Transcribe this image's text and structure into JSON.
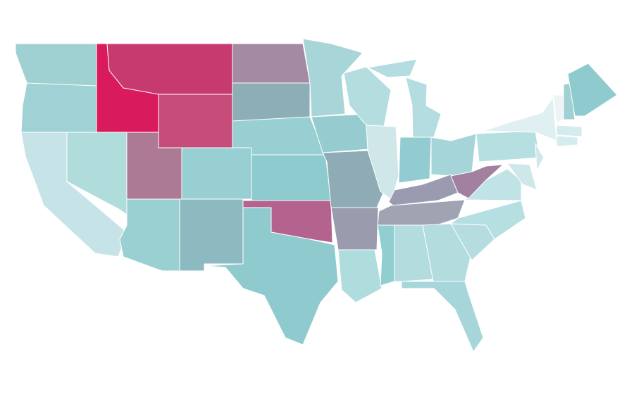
{
  "map": {
    "fills": [
      "#9fd0d2",
      "#a0d1d4",
      "#c6e4e7",
      "#b0dcdc",
      "#d91a5d",
      "#c73a70",
      "#c64d7a",
      "#ad7a96",
      "#98cfd2",
      "#9bd0d3",
      "#8dbac1",
      "#a48aa2",
      "#8eaeb7",
      "#98cfd2",
      "#8ecbce",
      "#b4638f",
      "#8fcbce",
      "#a8d6d8",
      "#96ccd0",
      "#8fabb6",
      "#9a9cad",
      "#afdcdd",
      "#b4dde0",
      "#cfe7e9",
      "#b3dde0",
      "#b3dde0",
      "#92ccd0",
      "#a5d5d8",
      "#9a9bb0",
      "#9fa3b2",
      "#91ced1",
      "#b3dcdf",
      "#b3dcdf",
      "#a6d6d9",
      "#b5dde0",
      "#b6dfe1",
      "#c0e3e5",
      "#a280a0",
      "#b6dfe1",
      "#e0f0f2",
      "#cfe7e9",
      "#cfe7e9",
      "#eef4f5",
      "#9fd0d2",
      "#8fcbce",
      "#d5ecee",
      "#d5ecee"
    ]
  }
}
